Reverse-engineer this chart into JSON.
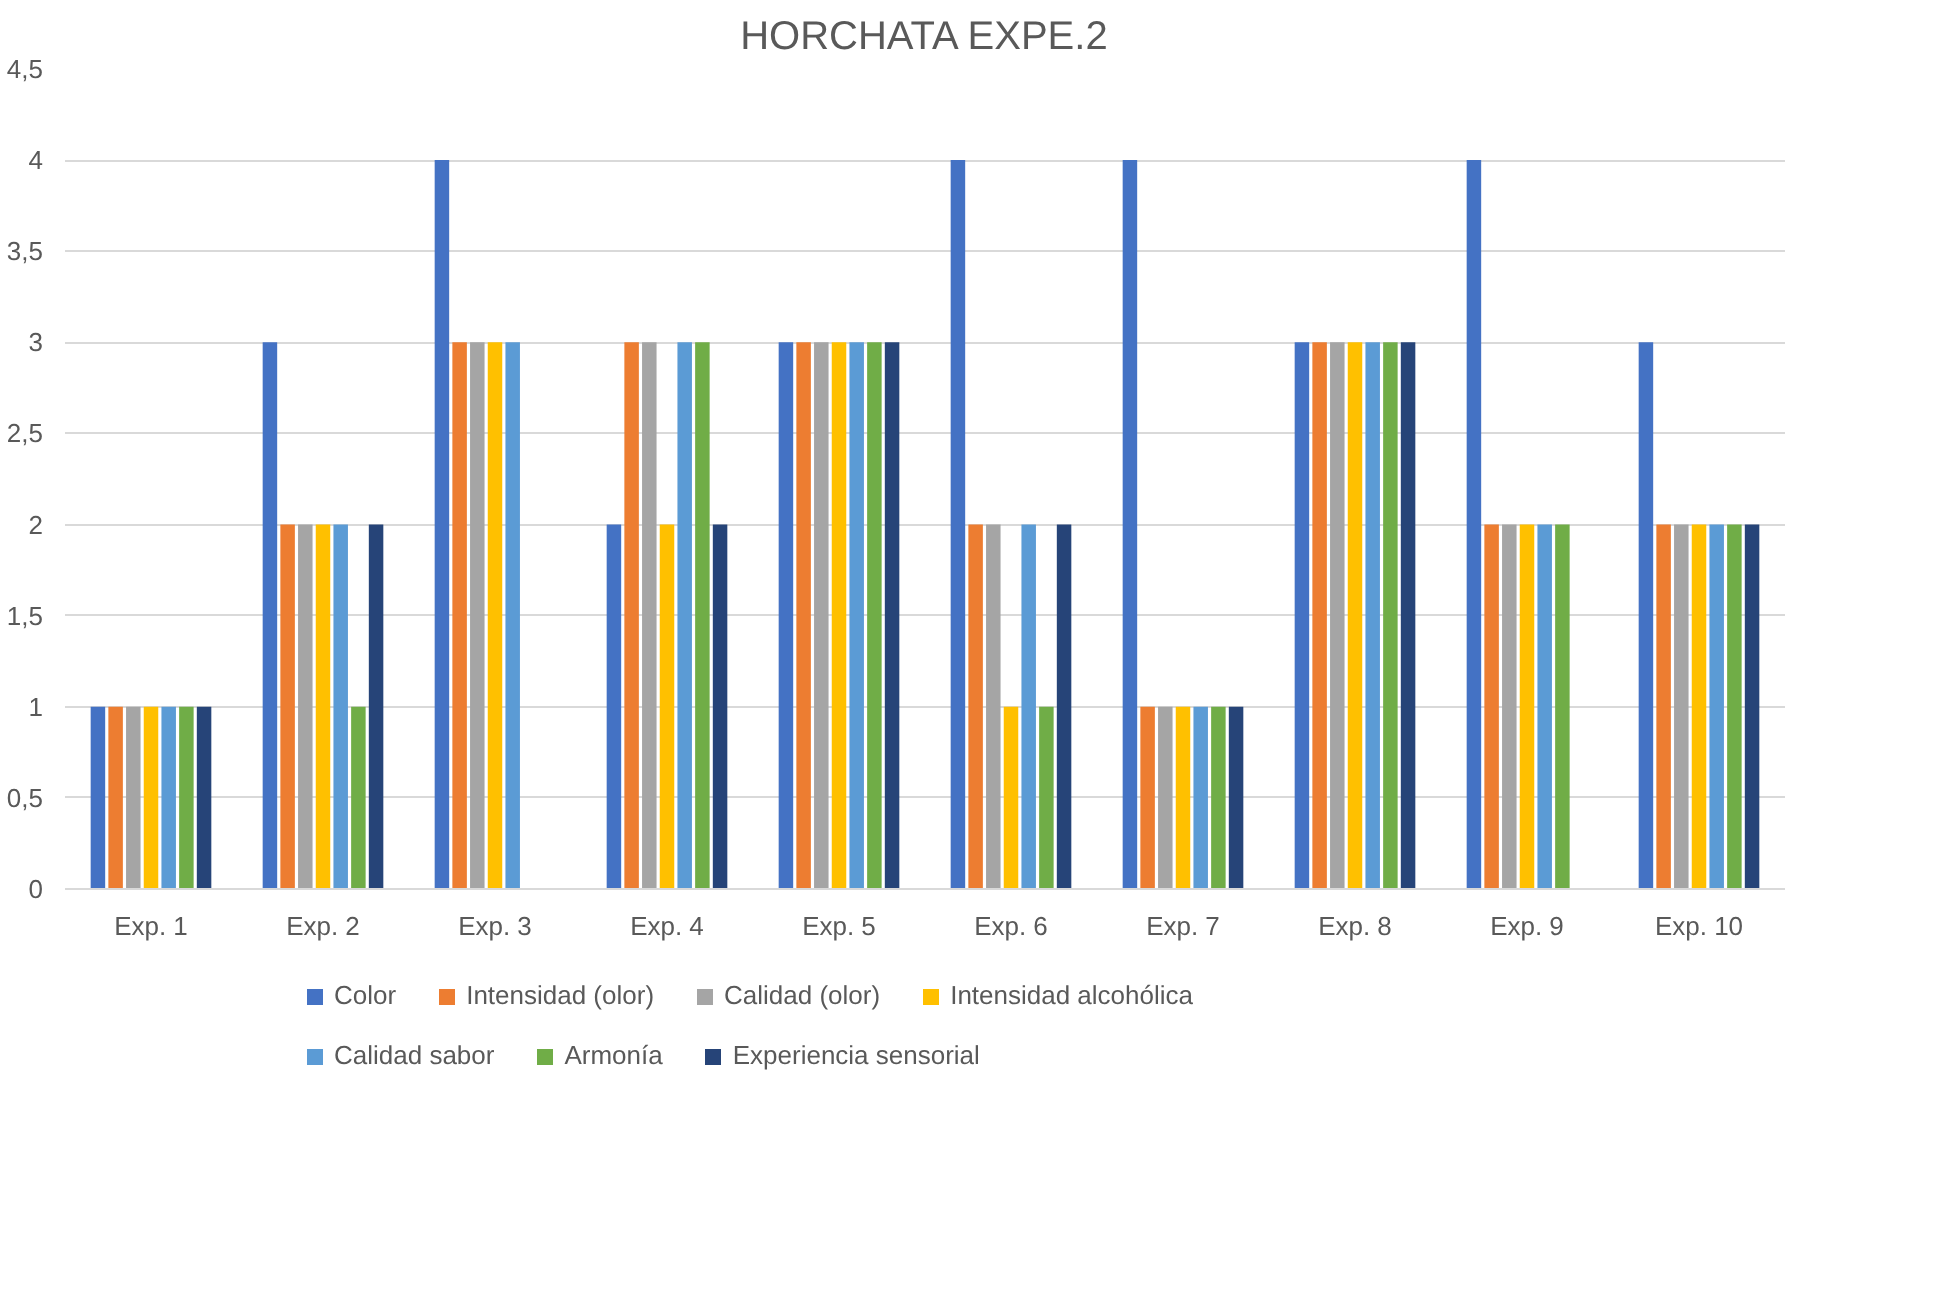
{
  "chart_data": {
    "type": "bar",
    "title": "HORCHATA EXPE.2",
    "categories": [
      "Exp. 1",
      "Exp. 2",
      "Exp. 3",
      "Exp. 4",
      "Exp. 5",
      "Exp. 6",
      "Exp. 7",
      "Exp. 8",
      "Exp. 9",
      "Exp. 10"
    ],
    "series": [
      {
        "name": "Color",
        "color": "#4472c4",
        "values": [
          1,
          3,
          4,
          2,
          3,
          4,
          4,
          3,
          4,
          3
        ]
      },
      {
        "name": "Intensidad (olor)",
        "color": "#ed7d31",
        "values": [
          1,
          2,
          3,
          3,
          3,
          2,
          1,
          3,
          2,
          2
        ]
      },
      {
        "name": "Calidad (olor)",
        "color": "#a5a5a5",
        "values": [
          1,
          2,
          3,
          3,
          3,
          2,
          1,
          3,
          2,
          2
        ]
      },
      {
        "name": "Intensidad alcohólica",
        "color": "#ffc000",
        "values": [
          1,
          2,
          3,
          2,
          3,
          1,
          1,
          3,
          2,
          2
        ]
      },
      {
        "name": "Calidad sabor",
        "color": "#5b9bd5",
        "values": [
          1,
          2,
          3,
          3,
          3,
          2,
          1,
          3,
          2,
          2
        ]
      },
      {
        "name": "Armonía",
        "color": "#70ad47",
        "values": [
          1,
          1,
          0,
          3,
          3,
          1,
          1,
          3,
          2,
          2
        ]
      },
      {
        "name": "Experiencia sensorial",
        "color": "#264478",
        "values": [
          1,
          2,
          0,
          2,
          3,
          2,
          1,
          3,
          0,
          2
        ]
      }
    ],
    "ylim": [
      0,
      4.5
    ],
    "yticks": [
      0,
      {
        "value": 0.5,
        "label": "0,5"
      },
      1,
      {
        "value": 1.5,
        "label": "1,5"
      },
      2,
      {
        "value": 2.5,
        "label": "2,5"
      },
      3,
      {
        "value": 3.5,
        "label": "3,5"
      },
      4,
      {
        "value": 4.5,
        "label": "4,5"
      }
    ],
    "grid": "y",
    "legend": "bottom"
  }
}
